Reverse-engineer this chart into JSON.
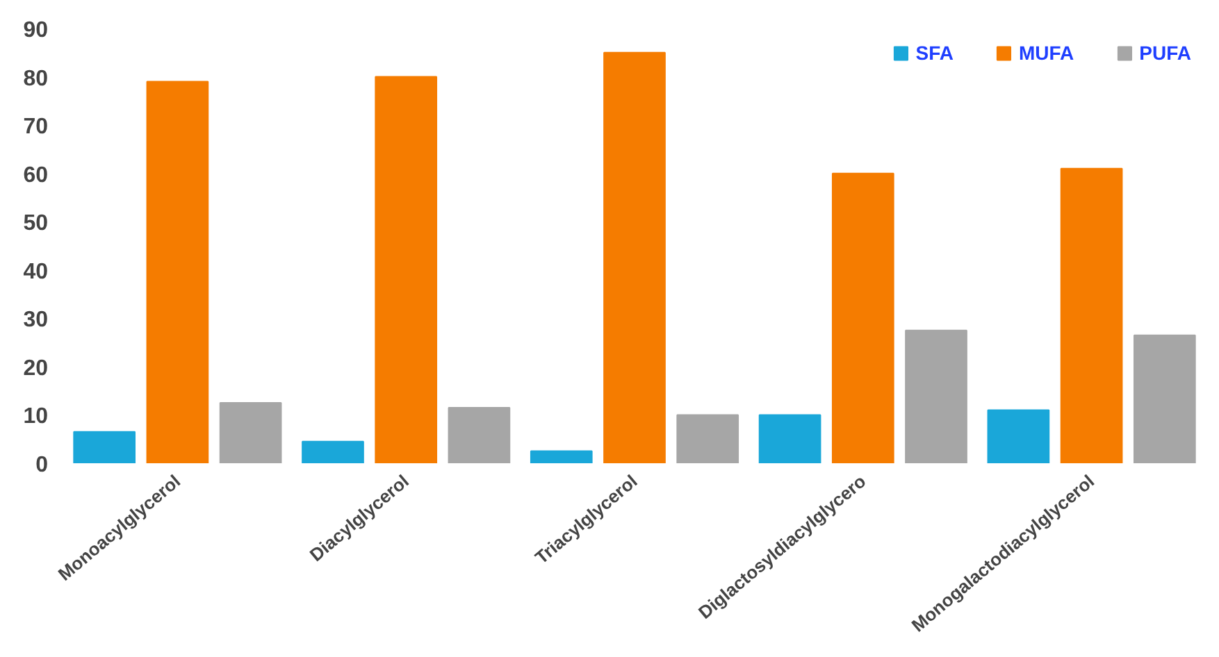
{
  "chart_data": {
    "type": "bar",
    "categories": [
      "Monoacylglycerol",
      "Diacylglycerol",
      "Triacylglycerol",
      "Diglactosyldiacylglycero",
      "Monogalactodiacylglycerol"
    ],
    "series": [
      {
        "name": "SFA",
        "color": "#1aa7d9",
        "values": [
          6.5,
          4.5,
          2.5,
          10,
          11
        ]
      },
      {
        "name": "MUFA",
        "color": "#f57c00",
        "values": [
          79,
          80,
          85,
          60,
          61
        ]
      },
      {
        "name": "PUFA",
        "color": "#a6a6a6",
        "values": [
          12.5,
          11.5,
          10,
          27.5,
          26.5
        ]
      }
    ],
    "ylim": [
      0,
      90
    ],
    "yticks": [
      0,
      10,
      20,
      30,
      40,
      50,
      60,
      70,
      80,
      90
    ],
    "grid": false,
    "legend": "top right"
  }
}
